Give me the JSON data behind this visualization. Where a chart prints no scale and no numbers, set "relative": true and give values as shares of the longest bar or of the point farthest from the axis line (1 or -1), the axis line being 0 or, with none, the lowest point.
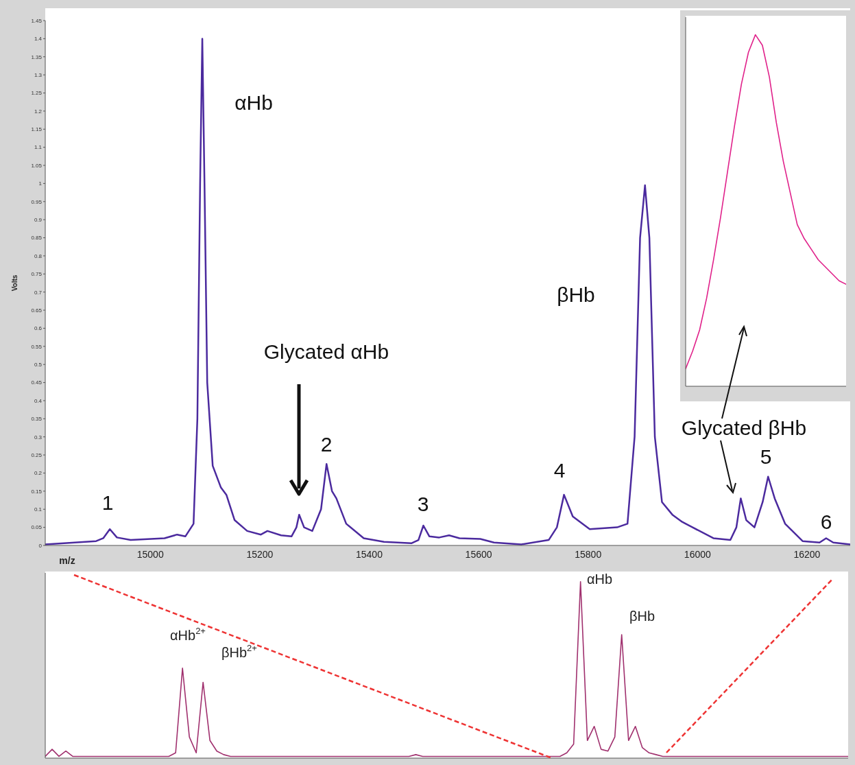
{
  "chart_data": [
    {
      "type": "line",
      "xlabel": "m/z",
      "ylabel": "Volts",
      "xlim": [
        14808,
        16279
      ],
      "xticks": [
        15000,
        15200,
        15400,
        15600,
        15800,
        16000,
        16200
      ],
      "ylim": [
        0,
        1.45
      ],
      "yticks": [
        0,
        0.05,
        0.1,
        0.15,
        0.2,
        0.25,
        0.3,
        0.35,
        0.4,
        0.45,
        0.5,
        0.55,
        0.6,
        0.65,
        0.7,
        0.75,
        0.8,
        0.85,
        0.9,
        0.95,
        1,
        1.05,
        1.1,
        1.15,
        1.2,
        1.25,
        1.3,
        1.35,
        1.4,
        1.45
      ],
      "x": [
        14808,
        14901,
        14914,
        14926,
        14939,
        14964,
        15026,
        15049,
        15064,
        15079,
        15086,
        15091,
        15095,
        15099,
        15104,
        15114,
        15129,
        15139,
        15154,
        15177,
        15202,
        15214,
        15239,
        15258,
        15267,
        15272,
        15281,
        15296,
        15312,
        15322,
        15332,
        15340,
        15358,
        15390,
        15427,
        15477,
        15490,
        15499,
        15510,
        15528,
        15546,
        15565,
        15603,
        15628,
        15678,
        15728,
        15743,
        15756,
        15772,
        15803,
        15853,
        15872,
        15885,
        15895,
        15904,
        15912,
        15922,
        15935,
        15954,
        15972,
        15991,
        16029,
        16060,
        16071,
        16079,
        16089,
        16104,
        16119,
        16129,
        16141,
        16160,
        16192,
        16223,
        16235,
        16248,
        16279
      ],
      "values": [
        0.003,
        0.012,
        0.02,
        0.045,
        0.022,
        0.015,
        0.02,
        0.03,
        0.025,
        0.06,
        0.35,
        1.0,
        1.4,
        1.0,
        0.45,
        0.22,
        0.16,
        0.14,
        0.07,
        0.04,
        0.03,
        0.04,
        0.028,
        0.025,
        0.05,
        0.085,
        0.05,
        0.04,
        0.1,
        0.225,
        0.15,
        0.13,
        0.06,
        0.02,
        0.01,
        0.006,
        0.015,
        0.055,
        0.025,
        0.022,
        0.028,
        0.02,
        0.018,
        0.008,
        0.003,
        0.015,
        0.05,
        0.14,
        0.08,
        0.045,
        0.05,
        0.06,
        0.3,
        0.85,
        0.995,
        0.85,
        0.3,
        0.12,
        0.085,
        0.065,
        0.05,
        0.02,
        0.015,
        0.05,
        0.13,
        0.07,
        0.05,
        0.12,
        0.19,
        0.13,
        0.06,
        0.012,
        0.008,
        0.02,
        0.008,
        0.003
      ],
      "color": "#4b2a9e",
      "annotations": [
        "αHb",
        "Glycated αHb",
        "βHb",
        "Glycated βHb",
        "1",
        "2",
        "3",
        "4",
        "5",
        "6"
      ]
    },
    {
      "type": "line",
      "relative": true,
      "categories": [
        null,
        null,
        null,
        null,
        null,
        null,
        null,
        null,
        null,
        null,
        null,
        null,
        null,
        null,
        null,
        null,
        null,
        null,
        null,
        null,
        null,
        null,
        null,
        null
      ],
      "values": [
        0.05,
        0.1,
        0.16,
        0.25,
        0.36,
        0.48,
        0.61,
        0.74,
        0.86,
        0.95,
        1.0,
        0.97,
        0.88,
        0.75,
        0.64,
        0.55,
        0.46,
        0.42,
        0.39,
        0.36,
        0.34,
        0.32,
        0.3,
        0.29
      ],
      "color": "#e0218a"
    },
    {
      "type": "line",
      "relative": true,
      "categories": [
        null,
        null,
        null,
        null,
        null,
        null,
        null,
        null,
        null,
        null,
        null,
        null,
        null,
        null,
        null,
        null,
        null,
        null,
        null,
        null,
        null,
        null,
        null,
        null,
        null,
        null,
        null,
        null,
        null,
        null,
        null,
        null,
        null,
        null,
        null,
        null,
        null,
        null,
        null,
        null,
        null,
        null,
        null,
        null,
        null,
        null,
        null,
        null,
        null,
        null,
        null,
        null,
        null,
        null,
        null,
        null,
        null,
        null,
        null,
        null,
        null,
        null,
        null,
        null,
        null,
        null,
        null,
        null,
        null,
        null,
        null,
        null,
        null,
        null,
        null,
        null,
        null,
        null,
        null,
        null,
        null,
        null,
        null,
        null,
        null,
        null,
        null,
        null,
        null,
        null,
        null,
        null,
        null,
        null,
        null,
        null,
        null,
        null,
        null,
        null,
        null,
        null,
        null,
        null,
        null,
        null,
        null,
        null,
        null,
        null,
        null,
        null,
        null,
        null,
        null,
        null,
        null,
        null
      ],
      "values": [
        0.01,
        0.05,
        0.01,
        0.04,
        0.01,
        0.01,
        0.01,
        0.01,
        0.01,
        0.01,
        0.01,
        0.01,
        0.01,
        0.01,
        0.01,
        0.01,
        0.01,
        0.01,
        0.01,
        0.03,
        0.51,
        0.12,
        0.03,
        0.43,
        0.1,
        0.04,
        0.02,
        0.01,
        0.01,
        0.01,
        0.01,
        0.01,
        0.01,
        0.01,
        0.01,
        0.01,
        0.01,
        0.01,
        0.01,
        0.01,
        0.01,
        0.01,
        0.01,
        0.01,
        0.01,
        0.01,
        0.01,
        0.01,
        0.01,
        0.01,
        0.01,
        0.01,
        0.01,
        0.01,
        0.02,
        0.01,
        0.01,
        0.01,
        0.01,
        0.01,
        0.01,
        0.01,
        0.01,
        0.01,
        0.01,
        0.01,
        0.01,
        0.01,
        0.01,
        0.01,
        0.01,
        0.01,
        0.01,
        0.01,
        0.01,
        0.01,
        0.03,
        0.08,
        1.0,
        0.1,
        0.18,
        0.05,
        0.04,
        0.12,
        0.7,
        0.1,
        0.18,
        0.06,
        0.03,
        0.02,
        0.01,
        0.01,
        0.01,
        0.01,
        0.01,
        0.01,
        0.01,
        0.01,
        0.01,
        0.01,
        0.01,
        0.01,
        0.01,
        0.01,
        0.01,
        0.01,
        0.01,
        0.01,
        0.01,
        0.01,
        0.01,
        0.01,
        0.01,
        0.01,
        0.01,
        0.01,
        0.01,
        0.01
      ],
      "color": "#a0306e",
      "annotations": [
        "αHb$^{2+}$",
        "βHb$^{2+}$",
        "αHb",
        "βHb"
      ]
    }
  ]
}
